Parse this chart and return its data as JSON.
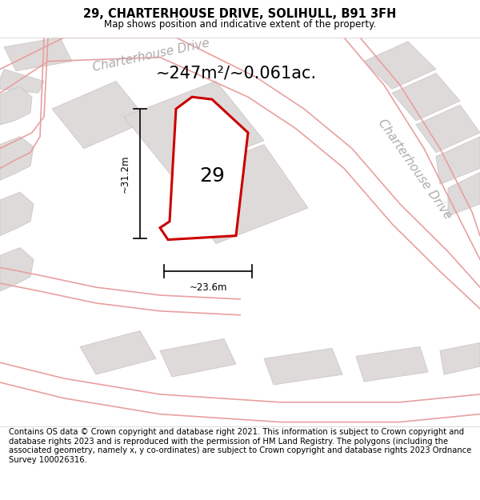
{
  "title": "29, CHARTERHOUSE DRIVE, SOLIHULL, B91 3FH",
  "subtitle": "Map shows position and indicative extent of the property.",
  "footer": "Contains OS data © Crown copyright and database right 2021. This information is subject to Crown copyright and database rights 2023 and is reproduced with the permission of HM Land Registry. The polygons (including the associated geometry, namely x, y co-ordinates) are subject to Crown copyright and database rights 2023 Ordnance Survey 100026316.",
  "area_label": "~247m²/~0.061ac.",
  "width_label": "~23.6m",
  "height_label": "~31.2m",
  "number_label": "29",
  "map_bg": "#f2f0f0",
  "plot_fill": "#ffffff",
  "plot_stroke": "#cc0000",
  "road_line_color": "#e8a0a0",
  "building_fill": "#dedad9",
  "building_stroke": "#ccc8c7",
  "street_text_color": "#b0aaaa",
  "dim_line_color": "#111111",
  "title_fontsize": 10.5,
  "subtitle_fontsize": 8.5,
  "footer_fontsize": 7.2,
  "area_fontsize": 15,
  "number_fontsize": 18,
  "dim_fontsize": 8.5,
  "street_fontsize": 11
}
